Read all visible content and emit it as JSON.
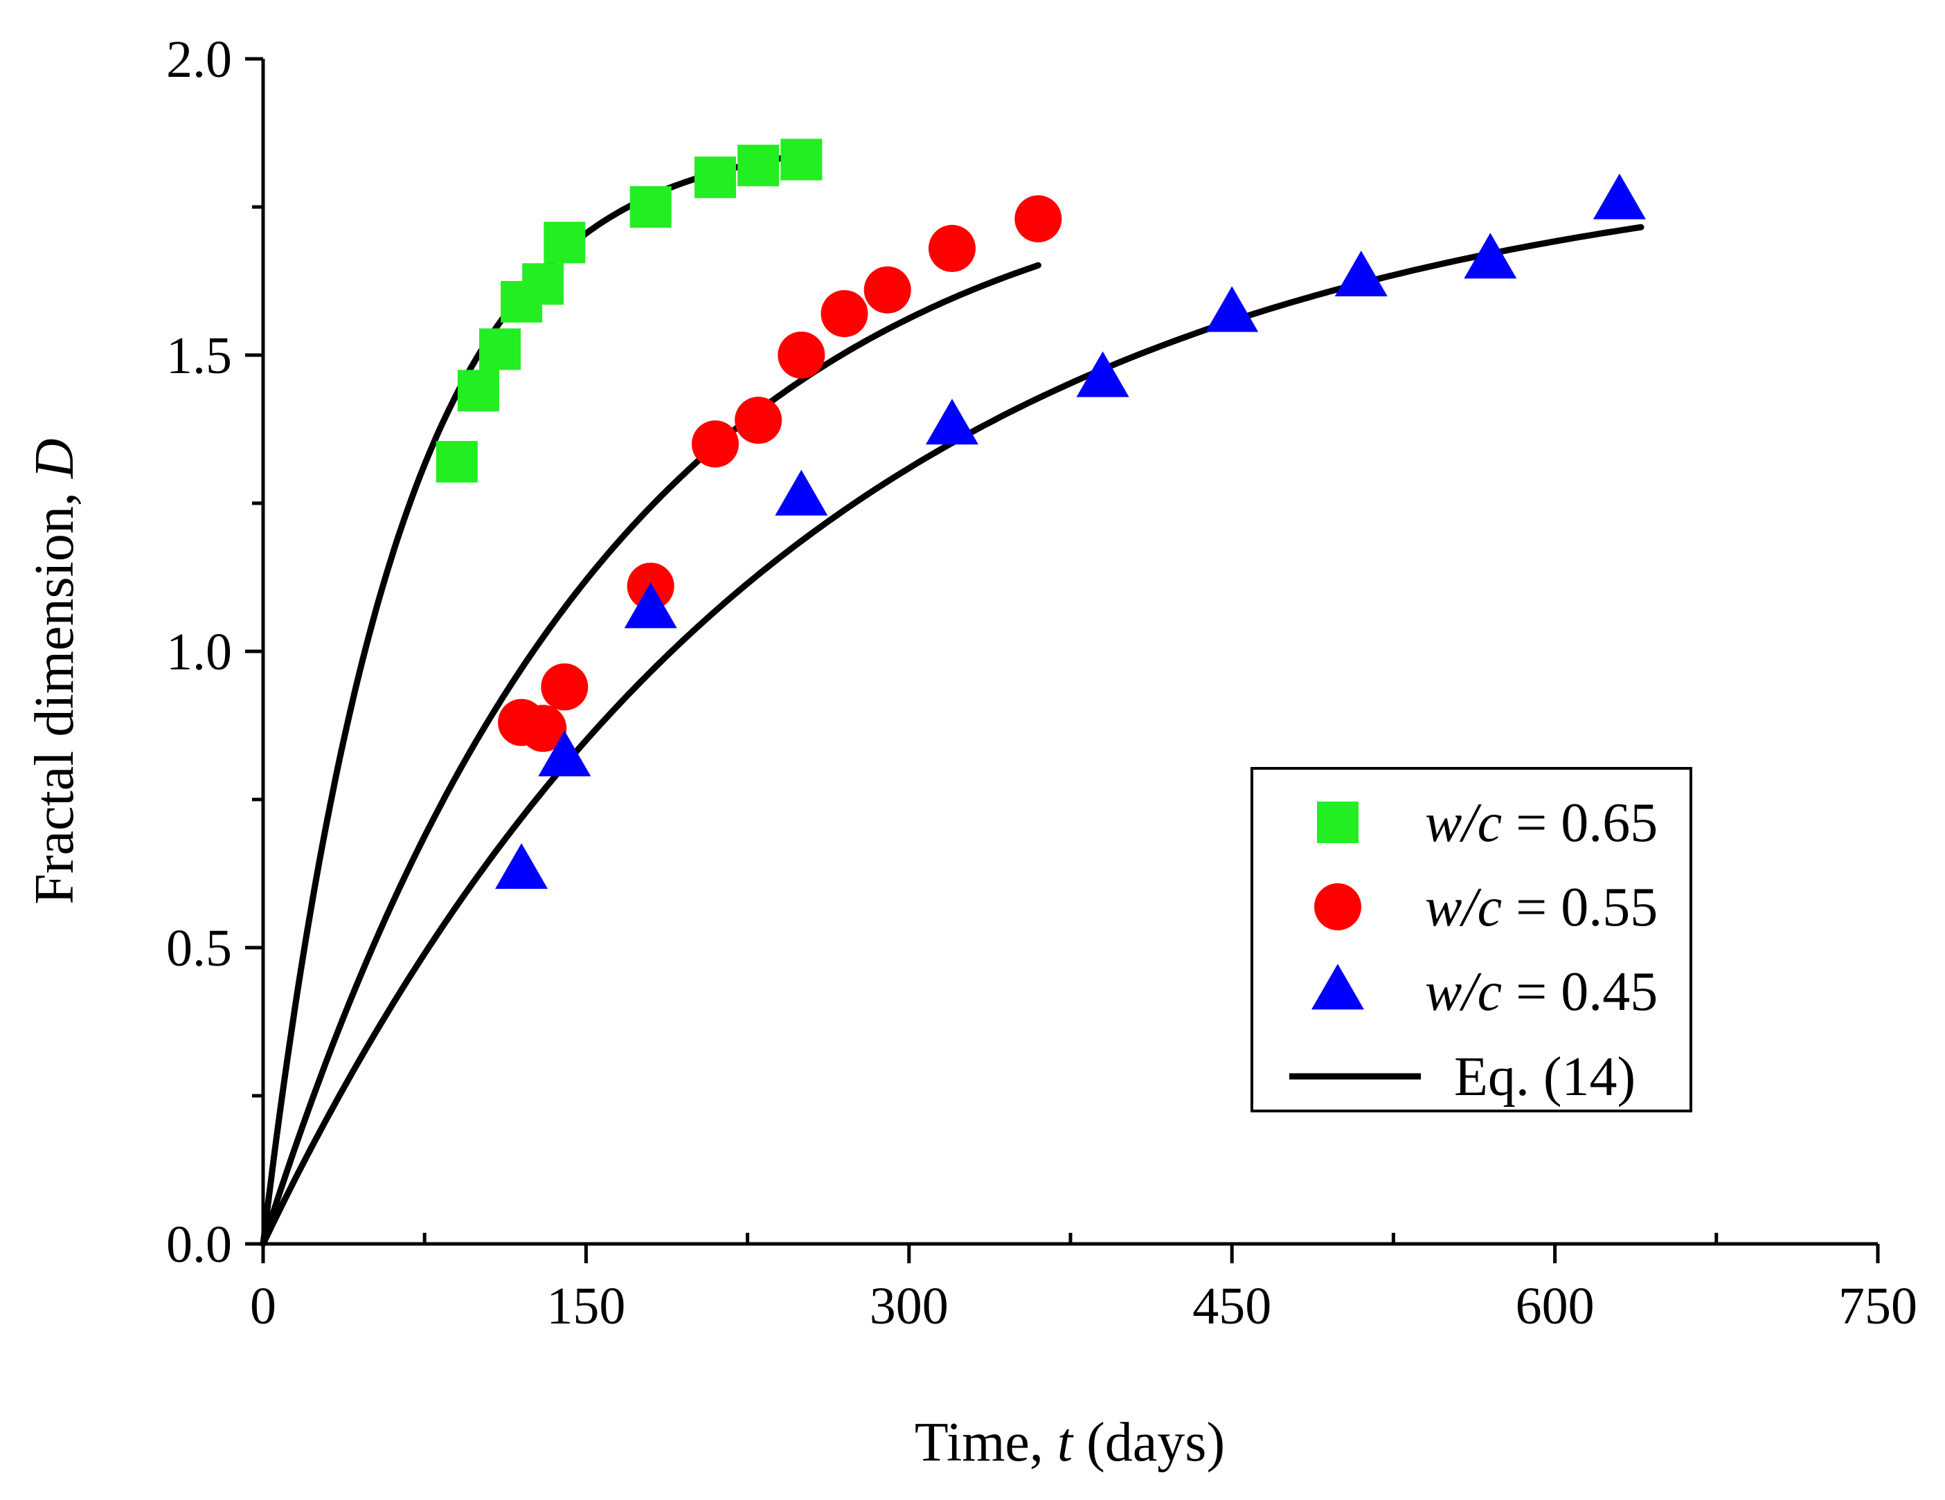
{
  "chart_data": {
    "type": "scatter",
    "title": "",
    "xlabel": {
      "prefix": "Time, ",
      "var": "t",
      "suffix": " (days)"
    },
    "ylabel": {
      "prefix": "Fractal dimension, ",
      "var": "D"
    },
    "xlim": [
      0,
      750
    ],
    "ylim": [
      0,
      2.0
    ],
    "x_ticks": [
      0,
      150,
      300,
      450,
      600,
      750
    ],
    "x_tick_labels": [
      "0",
      "150",
      "300",
      "450",
      "600",
      "750"
    ],
    "x_minor_ticks": [
      75,
      225,
      375,
      525,
      675
    ],
    "y_ticks": [
      0,
      0.5,
      1.0,
      1.5,
      2.0
    ],
    "y_tick_labels": [
      "0.0",
      "0.5",
      "1.0",
      "1.5",
      "2.0"
    ],
    "y_minor_ticks": [
      0.25,
      0.75,
      1.25,
      1.75
    ],
    "grid": false,
    "legend_position": "bottom-right",
    "series": [
      {
        "name": "w/c = 0.65",
        "label_var": "w/c",
        "label_value": " = 0.65",
        "marker": "square",
        "color": "#22ee22",
        "points": [
          [
            90,
            1.32
          ],
          [
            100,
            1.44
          ],
          [
            110,
            1.51
          ],
          [
            120,
            1.59
          ],
          [
            130,
            1.62
          ],
          [
            140,
            1.69
          ],
          [
            180,
            1.75
          ],
          [
            210,
            1.8
          ],
          [
            230,
            1.82
          ],
          [
            250,
            1.83
          ]
        ],
        "fit": {
          "a": 1.87,
          "k": 0.0162,
          "xmax": 250
        }
      },
      {
        "name": "w/c = 0.55",
        "label_var": "w/c",
        "label_value": " = 0.55",
        "marker": "circle",
        "color": "#ff0000",
        "points": [
          [
            120,
            0.88
          ],
          [
            130,
            0.87
          ],
          [
            140,
            0.94
          ],
          [
            180,
            1.11
          ],
          [
            210,
            1.35
          ],
          [
            230,
            1.39
          ],
          [
            250,
            1.5
          ],
          [
            270,
            1.57
          ],
          [
            290,
            1.61
          ],
          [
            320,
            1.68
          ],
          [
            360,
            1.73
          ]
        ],
        "fit": {
          "a": 1.85,
          "k": 0.0062,
          "xmax": 360
        }
      },
      {
        "name": "w/c = 0.45",
        "label_var": "w/c",
        "label_value": " = 0.45",
        "marker": "triangle",
        "color": "#0000ff",
        "points": [
          [
            120,
            0.63
          ],
          [
            140,
            0.82
          ],
          [
            180,
            1.07
          ],
          [
            250,
            1.26
          ],
          [
            320,
            1.38
          ],
          [
            390,
            1.46
          ],
          [
            450,
            1.57
          ],
          [
            510,
            1.63
          ],
          [
            570,
            1.66
          ],
          [
            630,
            1.76
          ]
        ],
        "fit": {
          "a": 1.85,
          "k": 0.0041,
          "xmax": 640
        }
      }
    ],
    "fit_line": {
      "label": "Eq. (14)",
      "color": "#000000"
    }
  }
}
